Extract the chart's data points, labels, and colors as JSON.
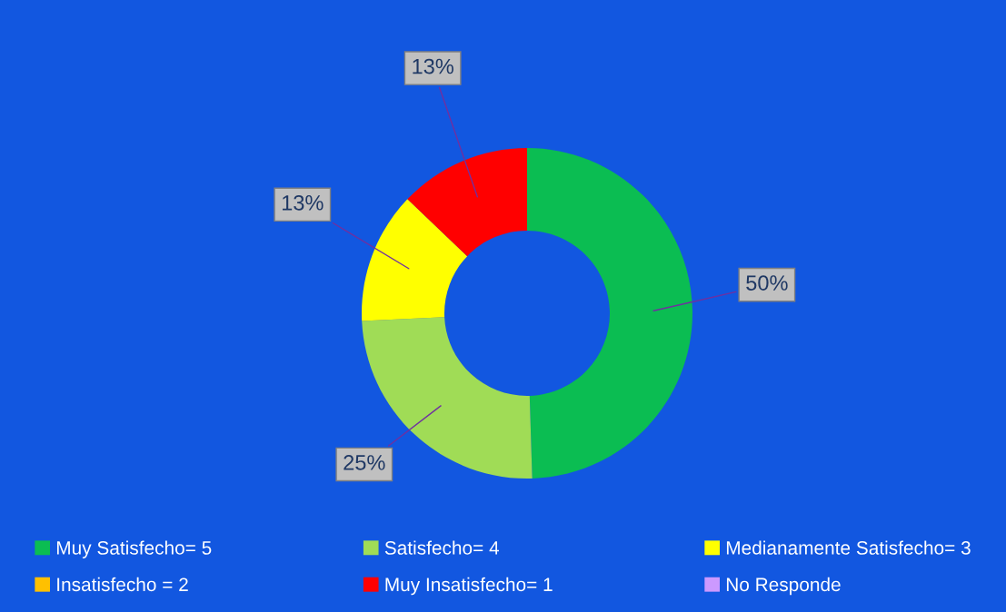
{
  "chart_data": {
    "type": "donut",
    "categories": [
      "Muy Satisfecho= 5",
      "Satisfecho= 4",
      "Medianamente Satisfecho= 3",
      "Insatisfecho = 2",
      "Muy Insatisfecho= 1",
      "No Responde"
    ],
    "values": [
      50,
      25,
      13,
      0,
      13,
      0
    ],
    "colors": [
      "#0bbd52",
      "#a0dc56",
      "#ffff00",
      "#ffc000",
      "#ff0000",
      "#cc99ff"
    ],
    "value_labels": [
      "50%",
      "25%",
      "13%",
      null,
      "13%",
      null
    ],
    "legend": "bottom"
  }
}
